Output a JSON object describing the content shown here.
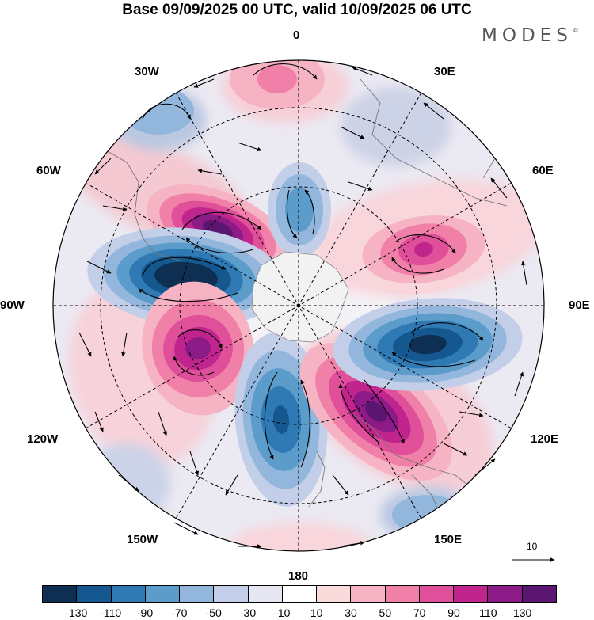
{
  "title": "Base 09/09/2025 00 UTC, valid 10/09/2025 06 UTC",
  "logo": {
    "text": "MODES",
    "mark": "©"
  },
  "longitude_labels": {
    "lon_0": "0",
    "lon_30e": "30E",
    "lon_60e": "60E",
    "lon_90e": "90E",
    "lon_120e": "120E",
    "lon_150e": "150E",
    "lon_180": "180",
    "lon_150w": "150W",
    "lon_120w": "120W",
    "lon_90w": "90W",
    "lon_60w": "60W",
    "lon_30w": "30W"
  },
  "reference_vector": {
    "value": "10"
  },
  "colorbar": {
    "colors": [
      "#0e2f52",
      "#15588f",
      "#2f7ab5",
      "#5b9ccb",
      "#93b7dc",
      "#c3cee8",
      "#e6e6f3",
      "#ffffff",
      "#fadada",
      "#f6b3c3",
      "#f080a8",
      "#e0509a",
      "#c0258d",
      "#8c1a87",
      "#5a1670"
    ],
    "ticks": [
      "-130",
      "-110",
      "-90",
      "-70",
      "-50",
      "-30",
      "-10",
      "10",
      "30",
      "50",
      "70",
      "90",
      "110",
      "130"
    ]
  }
}
